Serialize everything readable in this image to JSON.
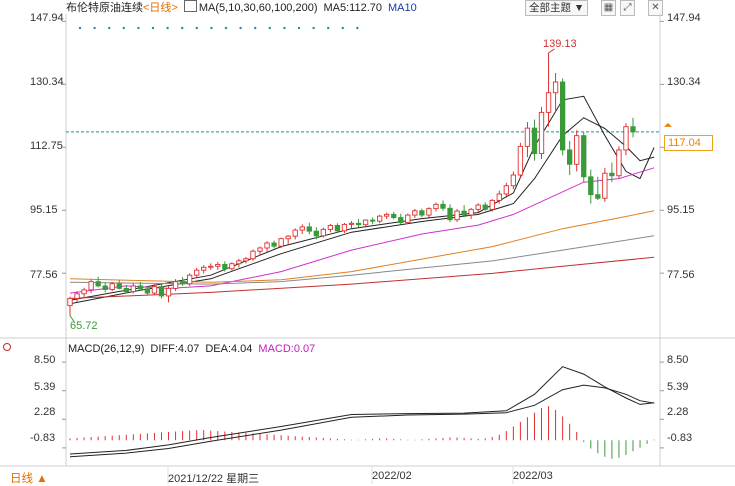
{
  "header": {
    "instrument": "布伦特原油连续",
    "period_tag": "<日线>",
    "ma_label": "MA(5,10,30,60,100,200)",
    "ma5_label": "MA5:112.70",
    "ma10_label": "MA10",
    "theme_dropdown": "全部主题",
    "icons": [
      "chart-line-icon",
      "dropdown-arrow-icon",
      "grid-icon",
      "expand-icon",
      "close-icon"
    ]
  },
  "price_axis": {
    "left_ticks": [
      "147.94",
      "130.34",
      "112.75",
      "95.15",
      "77.56"
    ],
    "right_ticks": [
      "147.94",
      "130.34",
      "95.15",
      "77.56"
    ],
    "current_price": "117.04",
    "high_label": "139.13",
    "low_label": "65.72"
  },
  "macd": {
    "title": "MACD(26,12,9)",
    "diff": "DIFF:4.07",
    "dea": "DEA:4.04",
    "macd_val": "MACD:0.07",
    "ticks": [
      "8.50",
      "5.39",
      "2.28",
      "-0.83"
    ]
  },
  "footer": {
    "period": "日线",
    "dates": [
      "2021/12/22 星期三",
      "2022/02",
      "2022/03"
    ]
  },
  "colors": {
    "up": "#e03030",
    "down": "#3a9a3a",
    "ma5": "#222222",
    "ma10": "#222222",
    "ma30": "#d030d0",
    "ma60": "#e08020",
    "ma100": "#888888",
    "ma200": "#c03030",
    "dea": "#222222",
    "diff": "#222222"
  },
  "chart_data": [
    {
      "type": "candlestick",
      "title": "布伦特原油连续 <日线>",
      "y_ticks": [
        147.94,
        130.34,
        112.75,
        95.15,
        77.56
      ],
      "candles": [
        {
          "o": 68.5,
          "h": 71.0,
          "l": 65.72,
          "c": 70.5
        },
        {
          "o": 70.5,
          "h": 72.5,
          "l": 69.5,
          "c": 71.8
        },
        {
          "o": 71.8,
          "h": 73.5,
          "l": 70.8,
          "c": 72.9
        },
        {
          "o": 72.9,
          "h": 75.8,
          "l": 72.0,
          "c": 75.2
        },
        {
          "o": 75.2,
          "h": 76.6,
          "l": 73.6,
          "c": 74.0
        },
        {
          "o": 74.0,
          "h": 75.0,
          "l": 72.2,
          "c": 73.0
        },
        {
          "o": 73.0,
          "h": 75.1,
          "l": 72.5,
          "c": 74.6
        },
        {
          "o": 74.6,
          "h": 75.7,
          "l": 73.0,
          "c": 73.3
        },
        {
          "o": 73.3,
          "h": 74.2,
          "l": 71.9,
          "c": 72.4
        },
        {
          "o": 72.4,
          "h": 74.8,
          "l": 71.9,
          "c": 74.0
        },
        {
          "o": 74.0,
          "h": 75.1,
          "l": 72.7,
          "c": 73.2
        },
        {
          "o": 73.2,
          "h": 74.0,
          "l": 71.5,
          "c": 72.0
        },
        {
          "o": 72.0,
          "h": 74.5,
          "l": 71.4,
          "c": 73.8
        },
        {
          "o": 73.8,
          "h": 74.5,
          "l": 70.5,
          "c": 71.2
        },
        {
          "o": 71.2,
          "h": 73.9,
          "l": 69.4,
          "c": 73.3
        },
        {
          "o": 73.3,
          "h": 75.9,
          "l": 72.6,
          "c": 75.2
        },
        {
          "o": 75.2,
          "h": 76.5,
          "l": 74.0,
          "c": 74.6
        },
        {
          "o": 74.6,
          "h": 77.5,
          "l": 74.0,
          "c": 77.0
        },
        {
          "o": 77.0,
          "h": 79.0,
          "l": 76.3,
          "c": 78.4
        },
        {
          "o": 78.4,
          "h": 79.8,
          "l": 77.5,
          "c": 79.2
        },
        {
          "o": 79.2,
          "h": 80.3,
          "l": 78.5,
          "c": 79.5
        },
        {
          "o": 79.5,
          "h": 80.7,
          "l": 78.5,
          "c": 80.0
        },
        {
          "o": 80.0,
          "h": 80.9,
          "l": 78.0,
          "c": 78.8
        },
        {
          "o": 78.8,
          "h": 80.6,
          "l": 78.3,
          "c": 80.2
        },
        {
          "o": 80.2,
          "h": 81.6,
          "l": 79.1,
          "c": 81.0
        },
        {
          "o": 81.0,
          "h": 82.1,
          "l": 80.3,
          "c": 81.6
        },
        {
          "o": 81.6,
          "h": 84.2,
          "l": 81.0,
          "c": 83.7
        },
        {
          "o": 83.7,
          "h": 85.0,
          "l": 82.5,
          "c": 84.6
        },
        {
          "o": 84.6,
          "h": 86.5,
          "l": 83.6,
          "c": 86.0
        },
        {
          "o": 86.0,
          "h": 86.7,
          "l": 84.5,
          "c": 85.1
        },
        {
          "o": 85.1,
          "h": 87.5,
          "l": 84.6,
          "c": 87.2
        },
        {
          "o": 87.2,
          "h": 88.2,
          "l": 85.7,
          "c": 87.9
        },
        {
          "o": 87.9,
          "h": 90.1,
          "l": 87.0,
          "c": 89.6
        },
        {
          "o": 89.6,
          "h": 91.2,
          "l": 88.5,
          "c": 90.5
        },
        {
          "o": 90.5,
          "h": 91.7,
          "l": 88.4,
          "c": 89.3
        },
        {
          "o": 89.3,
          "h": 90.4,
          "l": 87.0,
          "c": 88.0
        },
        {
          "o": 88.0,
          "h": 90.3,
          "l": 87.5,
          "c": 89.8
        },
        {
          "o": 89.8,
          "h": 91.3,
          "l": 89.0,
          "c": 90.9
        },
        {
          "o": 90.9,
          "h": 91.5,
          "l": 89.0,
          "c": 89.4
        },
        {
          "o": 89.4,
          "h": 91.6,
          "l": 88.8,
          "c": 91.2
        },
        {
          "o": 91.2,
          "h": 92.1,
          "l": 90.1,
          "c": 91.5
        },
        {
          "o": 91.5,
          "h": 92.7,
          "l": 90.3,
          "c": 91.1
        },
        {
          "o": 91.1,
          "h": 92.6,
          "l": 90.3,
          "c": 92.4
        },
        {
          "o": 92.4,
          "h": 93.1,
          "l": 91.2,
          "c": 92.1
        },
        {
          "o": 92.1,
          "h": 93.9,
          "l": 91.5,
          "c": 93.5
        },
        {
          "o": 93.5,
          "h": 94.5,
          "l": 92.7,
          "c": 94.0
        },
        {
          "o": 94.0,
          "h": 94.7,
          "l": 92.6,
          "c": 93.1
        },
        {
          "o": 93.1,
          "h": 94.2,
          "l": 91.2,
          "c": 91.7
        },
        {
          "o": 91.7,
          "h": 94.2,
          "l": 91.3,
          "c": 93.8
        },
        {
          "o": 93.8,
          "h": 95.5,
          "l": 93.0,
          "c": 95.0
        },
        {
          "o": 95.0,
          "h": 95.6,
          "l": 93.2,
          "c": 93.8
        },
        {
          "o": 93.8,
          "h": 96.0,
          "l": 93.1,
          "c": 95.6
        },
        {
          "o": 95.6,
          "h": 97.3,
          "l": 94.8,
          "c": 96.8
        },
        {
          "o": 96.8,
          "h": 97.9,
          "l": 95.0,
          "c": 95.7
        },
        {
          "o": 95.7,
          "h": 96.8,
          "l": 91.8,
          "c": 92.5
        },
        {
          "o": 92.5,
          "h": 95.5,
          "l": 91.9,
          "c": 94.9
        },
        {
          "o": 94.9,
          "h": 96.6,
          "l": 93.2,
          "c": 93.8
        },
        {
          "o": 93.8,
          "h": 95.8,
          "l": 92.7,
          "c": 95.4
        },
        {
          "o": 95.4,
          "h": 97.1,
          "l": 94.5,
          "c": 96.6
        },
        {
          "o": 96.6,
          "h": 97.4,
          "l": 95.0,
          "c": 95.4
        },
        {
          "o": 95.4,
          "h": 98.3,
          "l": 94.8,
          "c": 97.9
        },
        {
          "o": 97.9,
          "h": 100.6,
          "l": 97.0,
          "c": 99.7
        },
        {
          "o": 99.7,
          "h": 102.8,
          "l": 99.0,
          "c": 102.0
        },
        {
          "o": 102.0,
          "h": 106.0,
          "l": 101.0,
          "c": 105.0
        },
        {
          "o": 105.0,
          "h": 114.0,
          "l": 104.0,
          "c": 113.0
        },
        {
          "o": 113.0,
          "h": 119.8,
          "l": 110.0,
          "c": 118.1
        },
        {
          "o": 118.1,
          "h": 120.5,
          "l": 109.0,
          "c": 111.0
        },
        {
          "o": 111.0,
          "h": 124.0,
          "l": 109.5,
          "c": 122.5
        },
        {
          "o": 122.5,
          "h": 139.13,
          "l": 118.5,
          "c": 128.0
        },
        {
          "o": 128.0,
          "h": 133.5,
          "l": 122.5,
          "c": 131.0
        },
        {
          "o": 131.0,
          "h": 132.0,
          "l": 110.5,
          "c": 112.0
        },
        {
          "o": 112.0,
          "h": 114.5,
          "l": 105.0,
          "c": 108.0
        },
        {
          "o": 108.0,
          "h": 117.5,
          "l": 106.0,
          "c": 116.0
        },
        {
          "o": 116.0,
          "h": 117.0,
          "l": 103.0,
          "c": 104.5
        },
        {
          "o": 104.5,
          "h": 106.5,
          "l": 97.0,
          "c": 99.5
        },
        {
          "o": 99.5,
          "h": 104.5,
          "l": 98.0,
          "c": 98.5
        },
        {
          "o": 98.5,
          "h": 107.0,
          "l": 97.5,
          "c": 105.5
        },
        {
          "o": 105.5,
          "h": 108.5,
          "l": 103.0,
          "c": 104.8
        },
        {
          "o": 104.8,
          "h": 113.0,
          "l": 104.0,
          "c": 112.0
        },
        {
          "o": 112.0,
          "h": 119.5,
          "l": 110.5,
          "c": 118.5
        },
        {
          "o": 118.5,
          "h": 121.0,
          "l": 115.5,
          "c": 117.04
        }
      ],
      "ma_lines": [
        {
          "name": "MA5",
          "color": "#222222",
          "y": [
            [
              0,
              70
            ],
            [
              10,
              73.5
            ],
            [
              20,
              77
            ],
            [
              30,
              85
            ],
            [
              40,
              90
            ],
            [
              50,
              92.8
            ],
            [
              58,
              94.5
            ],
            [
              63,
              100
            ],
            [
              66,
              113
            ],
            [
              70,
              126
            ],
            [
              73,
              127
            ],
            [
              76,
              116
            ],
            [
              79,
              106
            ],
            [
              81,
              104
            ],
            [
              83,
              112.7
            ]
          ]
        },
        {
          "name": "MA10",
          "color": "#222222",
          "y": [
            [
              0,
              69
            ],
            [
              10,
              72.8
            ],
            [
              20,
              76
            ],
            [
              30,
              83
            ],
            [
              40,
              89
            ],
            [
              50,
              92
            ],
            [
              58,
              94
            ],
            [
              63,
              97
            ],
            [
              66,
              104
            ],
            [
              70,
              116
            ],
            [
              73,
              121
            ],
            [
              76,
              118
            ],
            [
              79,
              113
            ],
            [
              81,
              109
            ],
            [
              83,
              110
            ]
          ]
        },
        {
          "name": "MA30",
          "color": "#d030d0",
          "y": [
            [
              0,
              72
            ],
            [
              8,
              74
            ],
            [
              14,
              73.3
            ],
            [
              20,
              74
            ],
            [
              30,
              78
            ],
            [
              40,
              84
            ],
            [
              50,
              88.5
            ],
            [
              58,
              91
            ],
            [
              63,
              94
            ],
            [
              68,
              98.5
            ],
            [
              73,
              103
            ],
            [
              78,
              104
            ],
            [
              83,
              107
            ]
          ]
        },
        {
          "name": "MA60",
          "color": "#e08020",
          "y": [
            [
              0,
              76
            ],
            [
              20,
              75
            ],
            [
              30,
              75.7
            ],
            [
              40,
              78
            ],
            [
              50,
              81.5
            ],
            [
              60,
              85
            ],
            [
              70,
              90
            ],
            [
              78,
              93
            ],
            [
              83,
              95
            ]
          ]
        },
        {
          "name": "MA100",
          "color": "#888888",
          "y": [
            [
              0,
              75
            ],
            [
              20,
              74.5
            ],
            [
              30,
              75.2
            ],
            [
              40,
              77
            ],
            [
              50,
              79
            ],
            [
              60,
              81
            ],
            [
              70,
              84
            ],
            [
              83,
              88
            ]
          ]
        },
        {
          "name": "MA200",
          "color": "#c03030",
          "y": [
            [
              0,
              70.5
            ],
            [
              20,
              72.2
            ],
            [
              40,
              74.5
            ],
            [
              60,
              77.5
            ],
            [
              70,
              79.5
            ],
            [
              83,
              82
            ]
          ]
        }
      ]
    },
    {
      "type": "macd",
      "title": "MACD(26,12,9)",
      "y_ticks": [
        8.5,
        5.39,
        2.28,
        -0.83
      ],
      "diff": [
        [
          0,
          -1.5
        ],
        [
          8,
          -1.1
        ],
        [
          14,
          -0.5
        ],
        [
          20,
          0.3
        ],
        [
          30,
          1.5
        ],
        [
          40,
          2.8
        ],
        [
          48,
          2.9
        ],
        [
          56,
          2.95
        ],
        [
          62,
          3.2
        ],
        [
          66,
          5.0
        ],
        [
          70,
          8.0
        ],
        [
          73,
          7.2
        ],
        [
          76,
          5.8
        ],
        [
          79,
          4.6
        ],
        [
          81,
          3.9
        ],
        [
          83,
          4.07
        ]
      ],
      "dea": [
        [
          0,
          -1.8
        ],
        [
          8,
          -1.4
        ],
        [
          14,
          -0.9
        ],
        [
          20,
          -0.1
        ],
        [
          30,
          1.1
        ],
        [
          40,
          2.5
        ],
        [
          48,
          2.75
        ],
        [
          56,
          2.85
        ],
        [
          62,
          3.0
        ],
        [
          66,
          3.8
        ],
        [
          70,
          5.5
        ],
        [
          73,
          6.0
        ],
        [
          76,
          5.7
        ],
        [
          79,
          5.0
        ],
        [
          81,
          4.3
        ],
        [
          83,
          4.04
        ]
      ],
      "histogram": [
        0.2,
        0.25,
        0.3,
        0.35,
        0.4,
        0.45,
        0.5,
        0.55,
        0.6,
        0.65,
        0.7,
        0.75,
        0.8,
        0.85,
        0.9,
        0.95,
        1.0,
        1.05,
        1.1,
        1.1,
        1.05,
        1.0,
        0.95,
        0.9,
        0.85,
        0.8,
        0.75,
        0.7,
        0.65,
        0.6,
        0.55,
        0.5,
        0.45,
        0.4,
        0.35,
        0.3,
        0.25,
        0.2,
        0.15,
        0.1,
        0.05,
        0.05,
        0.1,
        0.15,
        0.2,
        0.2,
        0.15,
        0.1,
        0.05,
        0.05,
        0.1,
        0.15,
        0.2,
        0.25,
        0.3,
        0.3,
        0.25,
        0.2,
        0.15,
        0.2,
        0.35,
        0.6,
        1.0,
        1.5,
        2.0,
        2.5,
        3.0,
        3.5,
        3.7,
        3.3,
        2.6,
        1.8,
        0.9,
        -0.2,
        -0.9,
        -1.4,
        -1.8,
        -2.0,
        -1.9,
        -1.6,
        -1.2,
        -0.8,
        -0.4,
        0.07
      ]
    }
  ]
}
